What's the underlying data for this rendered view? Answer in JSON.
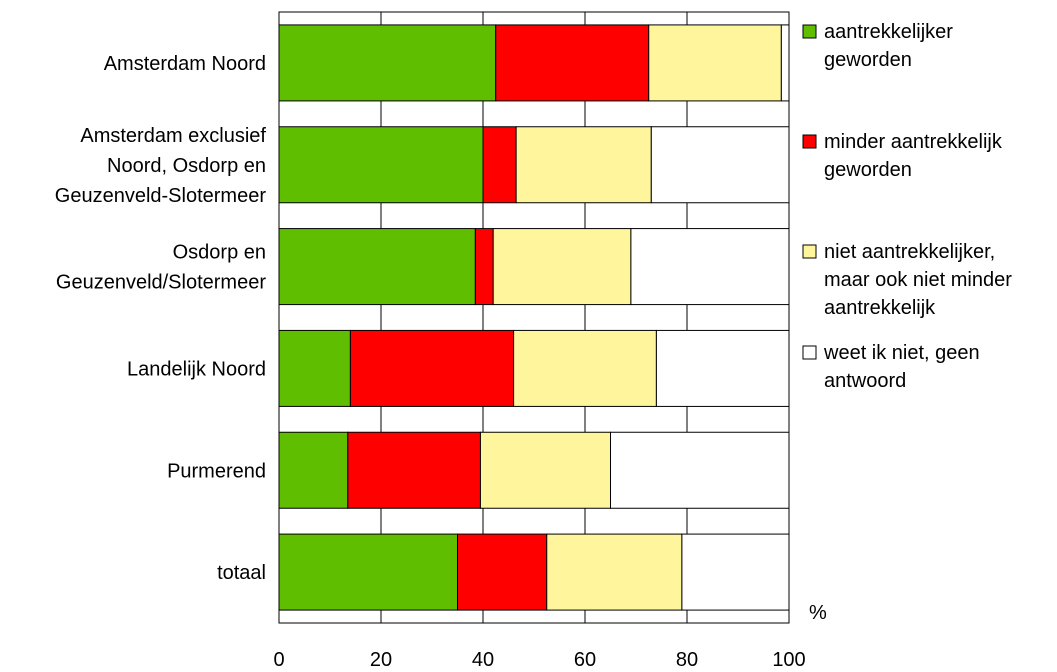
{
  "chart_data": {
    "type": "bar",
    "orientation": "horizontal",
    "stacked": true,
    "categories": [
      "Amsterdam Noord",
      "Amsterdam exclusief Noord, Osdorp en Geuzenveld-Slotermeer",
      "Osdorp en Geuzenveld/Slotermeer",
      "Landelijk Noord",
      "Purmerend",
      "totaal"
    ],
    "category_lines": [
      [
        "Amsterdam Noord"
      ],
      [
        "Amsterdam exclusief",
        "Noord, Osdorp en",
        "Geuzenveld-Slotermeer"
      ],
      [
        "Osdorp en",
        "Geuzenveld/Slotermeer"
      ],
      [
        "Landelijk Noord"
      ],
      [
        "Purmerend"
      ],
      [
        "totaal"
      ]
    ],
    "series": [
      {
        "name": "aantrekkelijker geworden",
        "name_lines": [
          "aantrekkelijker",
          "geworden"
        ],
        "color": "#5fbe00",
        "values": [
          42.5,
          40,
          38.5,
          14,
          13.5,
          35
        ]
      },
      {
        "name": "minder aantrekkelijk geworden",
        "name_lines": [
          "minder aantrekkelijk",
          "geworden"
        ],
        "color": "#ff0000",
        "values": [
          30,
          6.5,
          3.5,
          32,
          26,
          17.5
        ]
      },
      {
        "name": "niet aantrekkelijker, maar ook niet minder aantrekkelijk",
        "name_lines": [
          "niet aantrekkelijker,",
          "maar ook niet minder",
          "aantrekkelijk"
        ],
        "color": "#fff59d",
        "values": [
          26,
          26.5,
          27,
          28,
          25.5,
          26.5
        ]
      },
      {
        "name": "weet ik niet, geen antwoord",
        "name_lines": [
          "weet ik niet, geen",
          "antwoord"
        ],
        "color": "#ffffff",
        "values": [
          1.5,
          27,
          31,
          26,
          35,
          21
        ]
      }
    ],
    "xlim": [
      0,
      100
    ],
    "xticks": [
      0,
      20,
      40,
      60,
      80,
      100
    ],
    "unit_label": "%",
    "grid": "vertical",
    "legend_position": "right"
  }
}
